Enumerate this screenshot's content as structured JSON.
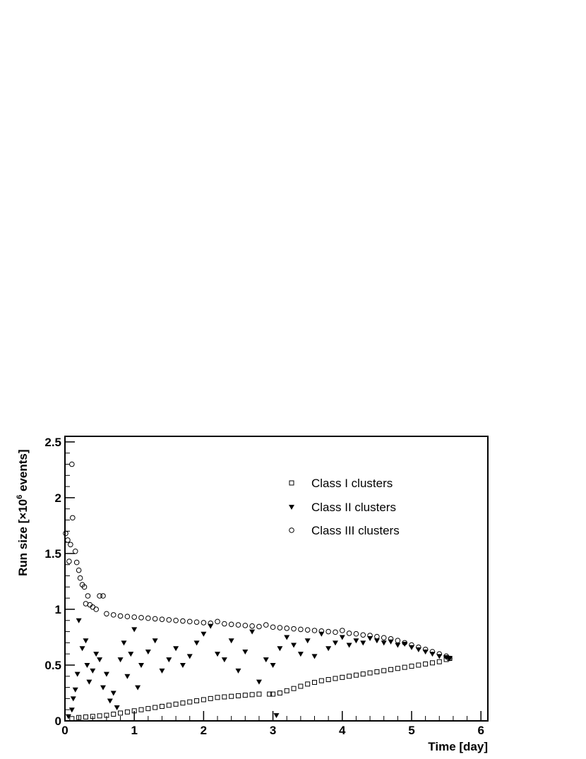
{
  "chart_data": {
    "type": "scatter",
    "xlabel": "Time [day]",
    "ylabel": "Run size [×10^6 events]",
    "ylabel_parts": {
      "before": "Run size [×10",
      "sup": "6",
      "after": " events]"
    },
    "xlim": [
      0,
      6.1
    ],
    "ylim": [
      0,
      2.55
    ],
    "x_ticks": [
      0,
      1,
      2,
      3,
      4,
      5,
      6
    ],
    "y_ticks": [
      0,
      0.5,
      1,
      1.5,
      2,
      2.5
    ],
    "x_tick_labels": [
      "0",
      "1",
      "2",
      "3",
      "4",
      "5",
      "6"
    ],
    "y_tick_labels": [
      "0",
      "0.5",
      "1",
      "1.5",
      "2",
      "2.5"
    ],
    "grid": false,
    "legend_position": "top-right",
    "series": [
      {
        "name": "Class I clusters",
        "marker": "open-square",
        "color": "#000000",
        "points": [
          [
            0.1,
            0.02
          ],
          [
            0.2,
            0.03
          ],
          [
            0.3,
            0.035
          ],
          [
            0.4,
            0.04
          ],
          [
            0.5,
            0.045
          ],
          [
            0.6,
            0.05
          ],
          [
            0.7,
            0.06
          ],
          [
            0.8,
            0.07
          ],
          [
            0.9,
            0.08
          ],
          [
            1.0,
            0.09
          ],
          [
            1.1,
            0.1
          ],
          [
            1.2,
            0.11
          ],
          [
            1.3,
            0.12
          ],
          [
            1.4,
            0.13
          ],
          [
            1.5,
            0.14
          ],
          [
            1.6,
            0.15
          ],
          [
            1.7,
            0.16
          ],
          [
            1.8,
            0.17
          ],
          [
            1.9,
            0.18
          ],
          [
            2.0,
            0.19
          ],
          [
            2.1,
            0.2
          ],
          [
            2.2,
            0.21
          ],
          [
            2.3,
            0.215
          ],
          [
            2.4,
            0.22
          ],
          [
            2.5,
            0.225
          ],
          [
            2.6,
            0.23
          ],
          [
            2.7,
            0.235
          ],
          [
            2.8,
            0.24
          ],
          [
            2.95,
            0.24
          ],
          [
            3.0,
            0.24
          ],
          [
            3.1,
            0.25
          ],
          [
            3.2,
            0.27
          ],
          [
            3.3,
            0.29
          ],
          [
            3.4,
            0.31
          ],
          [
            3.5,
            0.33
          ],
          [
            3.6,
            0.345
          ],
          [
            3.7,
            0.36
          ],
          [
            3.8,
            0.37
          ],
          [
            3.9,
            0.38
          ],
          [
            4.0,
            0.39
          ],
          [
            4.1,
            0.4
          ],
          [
            4.2,
            0.41
          ],
          [
            4.3,
            0.42
          ],
          [
            4.4,
            0.43
          ],
          [
            4.5,
            0.44
          ],
          [
            4.6,
            0.45
          ],
          [
            4.7,
            0.46
          ],
          [
            4.8,
            0.47
          ],
          [
            4.9,
            0.48
          ],
          [
            5.0,
            0.49
          ],
          [
            5.1,
            0.5
          ],
          [
            5.2,
            0.51
          ],
          [
            5.3,
            0.52
          ],
          [
            5.4,
            0.53
          ],
          [
            5.5,
            0.55
          ],
          [
            5.55,
            0.56
          ]
        ]
      },
      {
        "name": "Class II clusters",
        "marker": "filled-down-triangle",
        "color": "#000000",
        "points": [
          [
            0.05,
            0.04
          ],
          [
            0.1,
            0.1
          ],
          [
            0.12,
            0.2
          ],
          [
            0.15,
            0.28
          ],
          [
            0.18,
            0.42
          ],
          [
            0.2,
            0.9
          ],
          [
            0.25,
            0.65
          ],
          [
            0.3,
            0.72
          ],
          [
            0.32,
            0.5
          ],
          [
            0.35,
            0.35
          ],
          [
            0.4,
            0.45
          ],
          [
            0.45,
            0.6
          ],
          [
            0.5,
            0.55
          ],
          [
            0.55,
            0.3
          ],
          [
            0.6,
            0.42
          ],
          [
            0.65,
            0.18
          ],
          [
            0.7,
            0.25
          ],
          [
            0.75,
            0.12
          ],
          [
            0.8,
            0.55
          ],
          [
            0.85,
            0.7
          ],
          [
            0.9,
            0.4
          ],
          [
            0.95,
            0.6
          ],
          [
            1.0,
            0.82
          ],
          [
            1.05,
            0.3
          ],
          [
            1.1,
            0.5
          ],
          [
            1.2,
            0.62
          ],
          [
            1.3,
            0.72
          ],
          [
            1.4,
            0.45
          ],
          [
            1.5,
            0.55
          ],
          [
            1.6,
            0.65
          ],
          [
            1.7,
            0.5
          ],
          [
            1.8,
            0.58
          ],
          [
            1.9,
            0.7
          ],
          [
            2.0,
            0.78
          ],
          [
            2.1,
            0.85
          ],
          [
            2.2,
            0.6
          ],
          [
            2.3,
            0.55
          ],
          [
            2.4,
            0.72
          ],
          [
            2.5,
            0.45
          ],
          [
            2.6,
            0.62
          ],
          [
            2.7,
            0.8
          ],
          [
            2.8,
            0.35
          ],
          [
            2.9,
            0.55
          ],
          [
            3.0,
            0.5
          ],
          [
            3.05,
            0.05
          ],
          [
            3.1,
            0.65
          ],
          [
            3.2,
            0.75
          ],
          [
            3.3,
            0.68
          ],
          [
            3.4,
            0.6
          ],
          [
            3.5,
            0.72
          ],
          [
            3.6,
            0.58
          ],
          [
            3.7,
            0.78
          ],
          [
            3.8,
            0.65
          ],
          [
            3.9,
            0.7
          ],
          [
            4.0,
            0.75
          ],
          [
            4.1,
            0.68
          ],
          [
            4.2,
            0.72
          ],
          [
            4.3,
            0.7
          ],
          [
            4.4,
            0.74
          ],
          [
            4.5,
            0.72
          ],
          [
            4.6,
            0.7
          ],
          [
            4.7,
            0.71
          ],
          [
            4.8,
            0.68
          ],
          [
            4.9,
            0.69
          ],
          [
            5.0,
            0.66
          ],
          [
            5.1,
            0.64
          ],
          [
            5.2,
            0.62
          ],
          [
            5.3,
            0.6
          ],
          [
            5.4,
            0.58
          ],
          [
            5.5,
            0.57
          ],
          [
            5.55,
            0.56
          ]
        ]
      },
      {
        "name": "Class III clusters",
        "marker": "open-circle",
        "color": "#000000",
        "points": [
          [
            0.01,
            1.68
          ],
          [
            0.04,
            1.62
          ],
          [
            0.06,
            1.43
          ],
          [
            0.08,
            1.58
          ],
          [
            0.1,
            2.3
          ],
          [
            0.11,
            1.82
          ],
          [
            0.15,
            1.52
          ],
          [
            0.17,
            1.42
          ],
          [
            0.2,
            1.35
          ],
          [
            0.22,
            1.28
          ],
          [
            0.25,
            1.22
          ],
          [
            0.28,
            1.2
          ],
          [
            0.3,
            1.05
          ],
          [
            0.33,
            1.12
          ],
          [
            0.36,
            1.04
          ],
          [
            0.4,
            1.02
          ],
          [
            0.45,
            1.0
          ],
          [
            0.5,
            1.12
          ],
          [
            0.55,
            1.12
          ],
          [
            0.6,
            0.96
          ],
          [
            0.7,
            0.95
          ],
          [
            0.8,
            0.94
          ],
          [
            0.9,
            0.935
          ],
          [
            1.0,
            0.93
          ],
          [
            1.1,
            0.925
          ],
          [
            1.2,
            0.92
          ],
          [
            1.3,
            0.915
          ],
          [
            1.4,
            0.91
          ],
          [
            1.5,
            0.905
          ],
          [
            1.6,
            0.9
          ],
          [
            1.7,
            0.895
          ],
          [
            1.8,
            0.89
          ],
          [
            1.9,
            0.885
          ],
          [
            2.0,
            0.88
          ],
          [
            2.1,
            0.875
          ],
          [
            2.2,
            0.89
          ],
          [
            2.3,
            0.87
          ],
          [
            2.4,
            0.865
          ],
          [
            2.5,
            0.86
          ],
          [
            2.6,
            0.855
          ],
          [
            2.7,
            0.85
          ],
          [
            2.8,
            0.845
          ],
          [
            2.9,
            0.86
          ],
          [
            3.0,
            0.84
          ],
          [
            3.1,
            0.835
          ],
          [
            3.2,
            0.83
          ],
          [
            3.3,
            0.825
          ],
          [
            3.4,
            0.82
          ],
          [
            3.5,
            0.815
          ],
          [
            3.6,
            0.81
          ],
          [
            3.7,
            0.805
          ],
          [
            3.8,
            0.8
          ],
          [
            3.9,
            0.795
          ],
          [
            4.0,
            0.81
          ],
          [
            4.1,
            0.785
          ],
          [
            4.2,
            0.78
          ],
          [
            4.3,
            0.77
          ],
          [
            4.4,
            0.765
          ],
          [
            4.5,
            0.755
          ],
          [
            4.6,
            0.745
          ],
          [
            4.7,
            0.735
          ],
          [
            4.8,
            0.72
          ],
          [
            4.9,
            0.7
          ],
          [
            5.0,
            0.68
          ],
          [
            5.1,
            0.66
          ],
          [
            5.2,
            0.64
          ],
          [
            5.3,
            0.62
          ],
          [
            5.4,
            0.6
          ],
          [
            5.5,
            0.58
          ],
          [
            5.55,
            0.56
          ]
        ]
      }
    ]
  }
}
